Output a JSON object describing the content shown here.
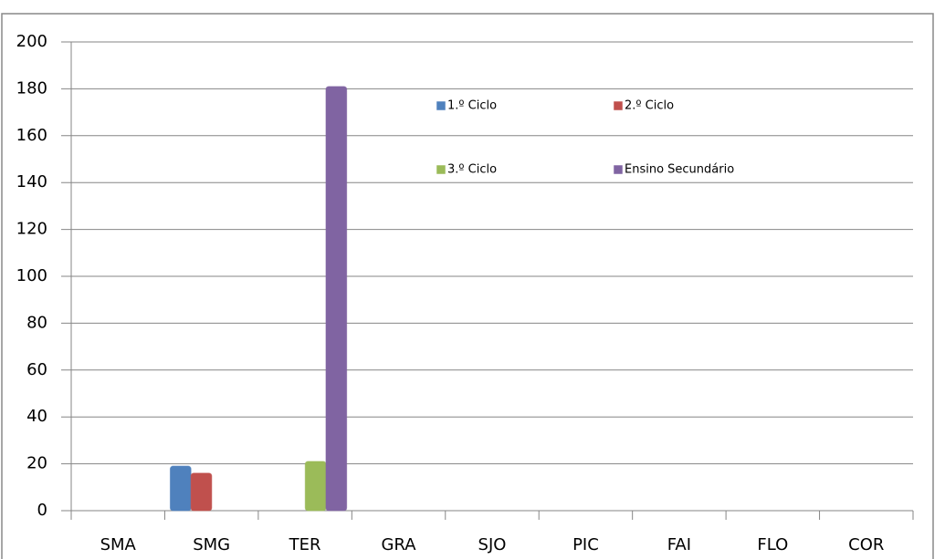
{
  "chart_data": {
    "type": "bar",
    "categories": [
      "SMA",
      "SMG",
      "TER",
      "GRA",
      "SJO",
      "PIC",
      "FAI",
      "FLO",
      "COR"
    ],
    "series": [
      {
        "name": "1.º Ciclo",
        "color": "#4f81bd",
        "values": [
          0,
          19,
          0,
          0,
          0,
          0,
          0,
          0,
          0
        ]
      },
      {
        "name": "2.º Ciclo",
        "color": "#c0504d",
        "values": [
          0,
          16,
          0,
          0,
          0,
          0,
          0,
          0,
          0
        ]
      },
      {
        "name": "3.º Ciclo",
        "color": "#9bbb59",
        "values": [
          0,
          0,
          21,
          0,
          0,
          0,
          0,
          0,
          0
        ]
      },
      {
        "name": "Ensino Secundário",
        "color": "#8064a2",
        "values": [
          0,
          0,
          181,
          0,
          0,
          0,
          0,
          0,
          0
        ]
      }
    ],
    "ylim": [
      0,
      200
    ],
    "yticks": [
      0,
      20,
      40,
      60,
      80,
      100,
      120,
      140,
      160,
      180,
      200
    ],
    "grid": true,
    "legend": "top"
  }
}
